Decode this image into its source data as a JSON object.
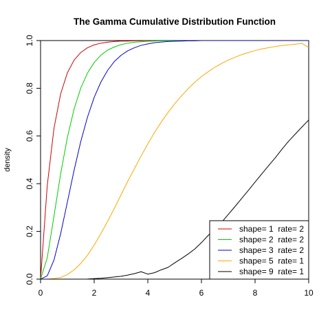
{
  "chart_data": {
    "type": "line",
    "title": "The Gamma Cumulative Distribution Function",
    "xlabel": "",
    "ylabel": "density",
    "xlim": [
      0,
      10
    ],
    "ylim": [
      0,
      1
    ],
    "x_ticks": [
      0,
      2,
      4,
      6,
      8,
      10
    ],
    "y_ticks": [
      0.0,
      0.2,
      0.4,
      0.6,
      0.8,
      1.0
    ],
    "x_tick_labels": [
      "0",
      "2",
      "4",
      "6",
      "8",
      "10"
    ],
    "y_tick_labels": [
      "0.0",
      "0.2",
      "0.4",
      "0.6",
      "0.8",
      "1.0"
    ],
    "grid": false,
    "legend_position": "bottom-right",
    "x": [
      0,
      0.25,
      0.5,
      0.75,
      1,
      1.25,
      1.5,
      1.75,
      2,
      2.25,
      2.5,
      2.75,
      3,
      3.25,
      3.5,
      3.75,
      4,
      4.25,
      4.5,
      4.75,
      5,
      5.25,
      5.5,
      5.75,
      6,
      6.25,
      6.5,
      6.75,
      7,
      7.25,
      7.5,
      7.75,
      8,
      8.25,
      8.5,
      8.75,
      9,
      9.25,
      9.5,
      9.75,
      10
    ],
    "series": [
      {
        "name": "shape= 1  rate= 2",
        "color": "#cc0000",
        "values": [
          0,
          0.393,
          0.632,
          0.777,
          0.865,
          0.918,
          0.95,
          0.97,
          0.982,
          0.989,
          0.993,
          0.996,
          0.998,
          0.998,
          0.999,
          0.999,
          1,
          1,
          1,
          1,
          1,
          1,
          1,
          1,
          1,
          1,
          1,
          1,
          1,
          1,
          1,
          1,
          1,
          1,
          1,
          1,
          1,
          1,
          1,
          1,
          1
        ]
      },
      {
        "name": "shape= 2  rate= 2",
        "color": "#00cc00",
        "values": [
          0,
          0.09,
          0.264,
          0.442,
          0.594,
          0.713,
          0.801,
          0.864,
          0.908,
          0.939,
          0.96,
          0.973,
          0.983,
          0.989,
          0.993,
          0.995,
          0.997,
          0.998,
          0.999,
          0.999,
          1,
          1,
          1,
          1,
          1,
          1,
          1,
          1,
          1,
          1,
          1,
          1,
          1,
          1,
          1,
          1,
          1,
          1,
          1,
          1,
          1
        ]
      },
      {
        "name": "shape= 3  rate= 2",
        "color": "#0000cc",
        "values": [
          0,
          0.014,
          0.08,
          0.191,
          0.323,
          0.456,
          0.577,
          0.679,
          0.762,
          0.826,
          0.875,
          0.912,
          0.938,
          0.957,
          0.97,
          0.98,
          0.986,
          0.991,
          0.994,
          0.996,
          0.997,
          0.998,
          0.999,
          0.999,
          1,
          1,
          1,
          1,
          1,
          1,
          1,
          1,
          1,
          1,
          1,
          1,
          1,
          1,
          1,
          1,
          1
        ]
      },
      {
        "name": "shape= 5  rate= 1",
        "color": "#ffa500",
        "values": [
          0,
          0,
          0.002,
          0.007,
          0.019,
          0.039,
          0.066,
          0.1,
          0.143,
          0.191,
          0.242,
          0.296,
          0.353,
          0.41,
          0.463,
          0.516,
          0.567,
          0.615,
          0.658,
          0.698,
          0.735,
          0.767,
          0.798,
          0.825,
          0.849,
          0.869,
          0.888,
          0.904,
          0.918,
          0.93,
          0.941,
          0.95,
          0.958,
          0.965,
          0.97,
          0.975,
          0.979,
          0.982,
          0.985,
          0.988,
          0.971
        ]
      },
      {
        "name": "shape= 9  rate= 1",
        "color": "#000000",
        "values": [
          0,
          0,
          0,
          0,
          0,
          0,
          0.0001,
          0.0003,
          0.002,
          0.0035,
          0.006,
          0.009,
          0.012,
          0.017,
          0.023,
          0.031,
          0.021,
          0.027,
          0.039,
          0.049,
          0.068,
          0.086,
          0.105,
          0.126,
          0.153,
          0.183,
          0.209,
          0.238,
          0.271,
          0.304,
          0.338,
          0.372,
          0.407,
          0.441,
          0.475,
          0.508,
          0.544,
          0.578,
          0.608,
          0.638,
          0.667
        ]
      }
    ]
  }
}
